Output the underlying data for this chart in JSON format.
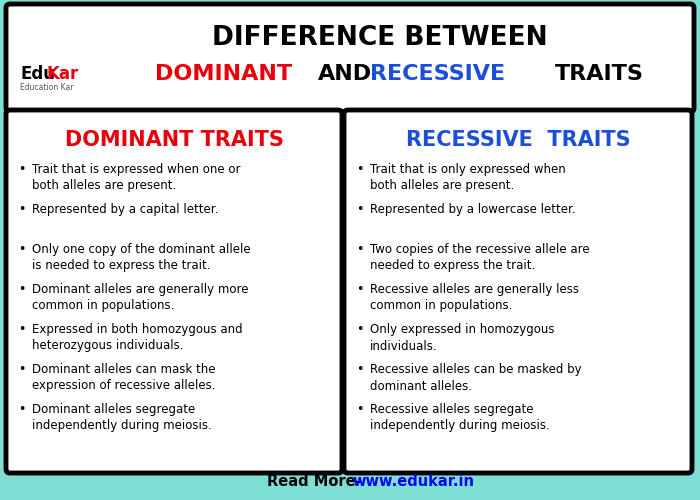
{
  "bg_color": "#7DDFD4",
  "title_line1": "DIFFERENCE BETWEEN",
  "left_title": "DOMINANT TRAITS",
  "right_title": "RECESSIVE  TRAITS",
  "left_bullets": [
    "Trait that is expressed when one or\nboth alleles are present.",
    "Represented by a capital letter.",
    "Only one copy of the dominant allele\nis needed to express the trait.",
    "Dominant alleles are generally more\ncommon in populations.",
    "Expressed in both homozygous and\nheterozygous individuals.",
    "Dominant alleles can mask the\nexpression of recessive alleles.",
    "Dominant alleles segregate\nindependently during meiosis."
  ],
  "right_bullets": [
    "Trait that is only expressed when\nboth alleles are present.",
    "Represented by a lowercase letter.",
    "Two copies of the recessive allele are\nneeded to express the trait.",
    "Recessive alleles are generally less\ncommon in populations.",
    "Only expressed in homozygous\nindividuals.",
    "Recessive alleles can be masked by\ndominant alleles.",
    "Recessive alleles segregate\nindependently during meiosis."
  ],
  "footer_text1": "Read More- ",
  "footer_text2": "www.edukar.in",
  "dominant_color": "#E8000A",
  "recessive_color": "#1B4FD8",
  "edukar_black": "#000000",
  "edukar_red": "#E8000A",
  "white": "#FFFFFF"
}
